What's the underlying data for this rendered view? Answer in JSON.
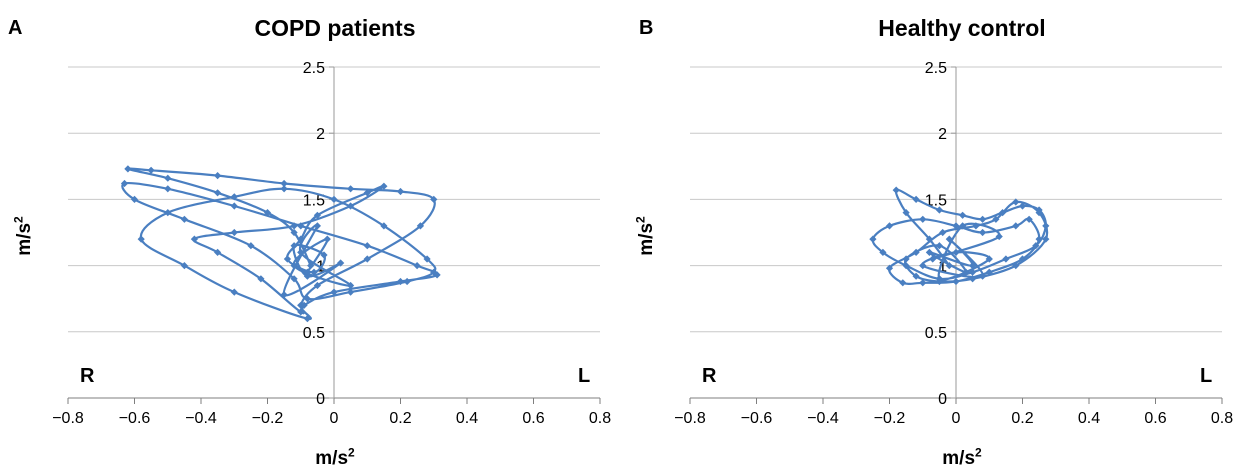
{
  "chart_data": [
    {
      "panel_letter": "A",
      "type": "scatter",
      "title": "COPD patients",
      "xlabel": "m/s²",
      "ylabel": "m/s²",
      "xlim": [
        -0.8,
        0.8
      ],
      "ylim": [
        0,
        2.5
      ],
      "x_ticks": [
        "−0.8",
        "−0.6",
        "−0.4",
        "−0.2",
        "0",
        "0.2",
        "0.4",
        "0.6",
        "0.8"
      ],
      "y_ticks": [
        "0",
        "0.5",
        "1",
        "1.5",
        "2",
        "2.5"
      ],
      "grid": "horizontal",
      "marker": "diamond",
      "line": "smooth",
      "color": "#4a7fc1",
      "side_labels": {
        "left": "R",
        "right": "L"
      },
      "series": [
        {
          "x": [
            -0.07,
            -0.12,
            -0.2,
            -0.35,
            -0.5,
            -0.62,
            -0.55,
            -0.35,
            -0.15,
            0.05,
            0.2,
            0.3,
            0.26,
            0.1,
            -0.05,
            -0.1,
            -0.08,
            -0.3,
            -0.45,
            -0.58,
            -0.5,
            -0.3,
            -0.15,
            0.0,
            0.15,
            0.28,
            0.3,
            0.22,
            0.05,
            -0.08,
            -0.12,
            -0.25,
            -0.45,
            -0.6,
            -0.63,
            -0.5,
            -0.3,
            -0.1,
            0.1,
            0.25,
            0.31,
            0.2,
            0.0,
            -0.09,
            -0.1,
            -0.22,
            -0.35,
            -0.42,
            -0.3,
            -0.12,
            0.05,
            0.15,
            0.1,
            -0.05,
            -0.1,
            -0.14,
            -0.06,
            -0.03,
            -0.12,
            -0.08,
            0.02,
            -0.15,
            -0.05,
            -0.1,
            0.05,
            -0.12,
            -0.02,
            -0.08
          ],
          "y": [
            1.0,
            1.25,
            1.4,
            1.55,
            1.66,
            1.73,
            1.72,
            1.68,
            1.62,
            1.58,
            1.56,
            1.5,
            1.3,
            1.05,
            0.85,
            0.7,
            0.6,
            0.8,
            1.0,
            1.2,
            1.4,
            1.52,
            1.58,
            1.5,
            1.3,
            1.05,
            0.95,
            0.88,
            0.8,
            0.75,
            0.9,
            1.15,
            1.35,
            1.5,
            1.62,
            1.58,
            1.45,
            1.3,
            1.15,
            1.0,
            0.93,
            0.88,
            0.8,
            0.7,
            0.65,
            0.9,
            1.1,
            1.2,
            1.25,
            1.3,
            1.45,
            1.6,
            1.55,
            1.38,
            1.2,
            1.05,
            0.95,
            1.08,
            1.15,
            0.92,
            1.02,
            0.78,
            1.3,
            1.1,
            0.85,
            1.0,
            1.2,
            0.95
          ]
        }
      ]
    },
    {
      "panel_letter": "B",
      "type": "scatter",
      "title": "Healthy control",
      "xlabel": "m/s²",
      "ylabel": "m/s²",
      "xlim": [
        -0.8,
        0.8
      ],
      "ylim": [
        0,
        2.5
      ],
      "x_ticks": [
        "−0.8",
        "−0.6",
        "−0.4",
        "−0.2",
        "0",
        "0.2",
        "0.4",
        "0.6",
        "0.8"
      ],
      "y_ticks": [
        "0",
        "0.5",
        "1",
        "1.5",
        "2",
        "2.5"
      ],
      "grid": "horizontal",
      "marker": "diamond",
      "line": "smooth",
      "color": "#4a7fc1",
      "side_labels": {
        "left": "R",
        "right": "L"
      },
      "series": [
        {
          "x": [
            -0.02,
            -0.08,
            -0.15,
            -0.18,
            -0.12,
            -0.05,
            0.02,
            0.08,
            0.14,
            0.2,
            0.25,
            0.27,
            0.24,
            0.15,
            0.05,
            -0.05,
            -0.15,
            -0.22,
            -0.25,
            -0.2,
            -0.1,
            0.0,
            0.08,
            0.18,
            0.22,
            0.25,
            0.2,
            0.1,
            0.0,
            -0.1,
            -0.16,
            -0.2,
            -0.12,
            -0.04,
            0.06,
            0.12,
            0.18,
            0.25,
            0.27,
            0.18,
            0.05,
            -0.05,
            -0.12,
            -0.15,
            -0.05,
            0.03,
            -0.08,
            0.05,
            -0.02,
            0.08,
            -0.1,
            0.0,
            0.1,
            -0.05,
            0.02,
            0.13,
            -0.07
          ],
          "y": [
            1.0,
            1.2,
            1.4,
            1.57,
            1.5,
            1.42,
            1.38,
            1.35,
            1.4,
            1.45,
            1.42,
            1.3,
            1.15,
            1.05,
            0.95,
            0.9,
            1.0,
            1.1,
            1.2,
            1.3,
            1.35,
            1.3,
            1.25,
            1.3,
            1.35,
            1.2,
            1.05,
            0.95,
            0.88,
            0.87,
            0.87,
            0.98,
            1.1,
            1.25,
            1.3,
            1.35,
            1.48,
            1.4,
            1.2,
            1.0,
            0.9,
            0.88,
            0.92,
            1.05,
            1.15,
            0.95,
            1.1,
            1.0,
            1.2,
            0.92,
            1.0,
            1.1,
            1.05,
            0.9,
            1.3,
            1.22,
            1.05
          ]
        }
      ]
    }
  ]
}
